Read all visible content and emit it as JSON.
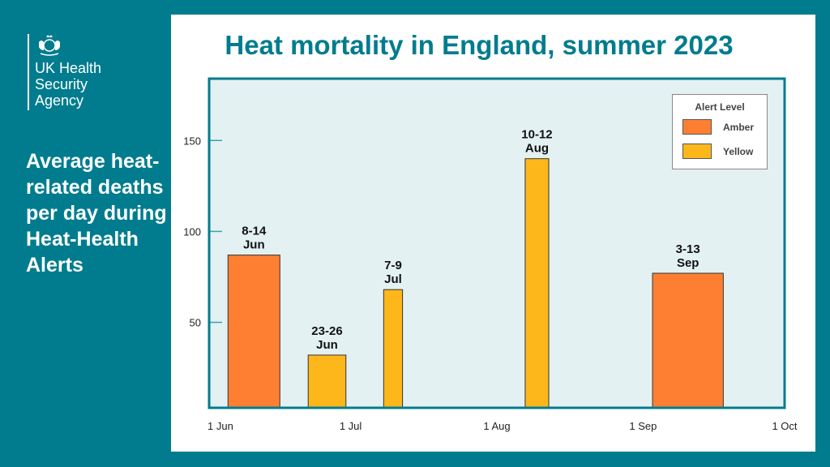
{
  "branding": {
    "org_name": "UK Health\nSecurity\nAgency",
    "logo": "royal-crest"
  },
  "sidebar": {
    "subtitle": "Average heat-related deaths per day during Heat-Health Alerts"
  },
  "colors": {
    "background": "#007C8E",
    "plot_background": "#E3F1F2",
    "amber": "#FF7F32",
    "yellow": "#FDB71A",
    "title": "#007C8E"
  },
  "chart_data": {
    "type": "bar",
    "title": "Heat mortality in England, summer 2023",
    "xlabel": "",
    "ylabel": "",
    "ylim": [
      3,
      184
    ],
    "xlim": [
      "2023-06-01",
      "2023-10-01"
    ],
    "yticks": [
      50,
      100,
      150
    ],
    "xticks": [
      {
        "date": "2023-06-01",
        "label": "1 Jun"
      },
      {
        "date": "2023-07-01",
        "label": "1 Jul"
      },
      {
        "date": "2023-08-01",
        "label": "1 Aug"
      },
      {
        "date": "2023-09-01",
        "label": "1 Sep"
      },
      {
        "date": "2023-10-01",
        "label": "1 Oct"
      }
    ],
    "grid": false,
    "legend": {
      "title": "Alert Level",
      "placement": "top-right",
      "entries": [
        {
          "name": "Amber",
          "color": "#FF7F32"
        },
        {
          "name": "Yellow",
          "color": "#FDB71A"
        }
      ]
    },
    "bars": [
      {
        "label_line1": "8-14",
        "label_line2": "Jun",
        "value": 87,
        "level": "Amber",
        "start": "2023-06-05",
        "end": "2023-06-16"
      },
      {
        "label_line1": "23-26",
        "label_line2": "Jun",
        "value": 32,
        "level": "Yellow",
        "start": "2023-06-22",
        "end": "2023-06-30"
      },
      {
        "label_line1": "7-9",
        "label_line2": "Jul",
        "value": 68,
        "level": "Yellow",
        "start": "2023-07-08",
        "end": "2023-07-12"
      },
      {
        "label_line1": "10-12",
        "label_line2": "Aug",
        "value": 140,
        "level": "Yellow",
        "start": "2023-08-07",
        "end": "2023-08-12"
      },
      {
        "label_line1": "3-13",
        "label_line2": "Sep",
        "value": 77,
        "level": "Amber",
        "start": "2023-09-03",
        "end": "2023-09-18"
      }
    ]
  }
}
